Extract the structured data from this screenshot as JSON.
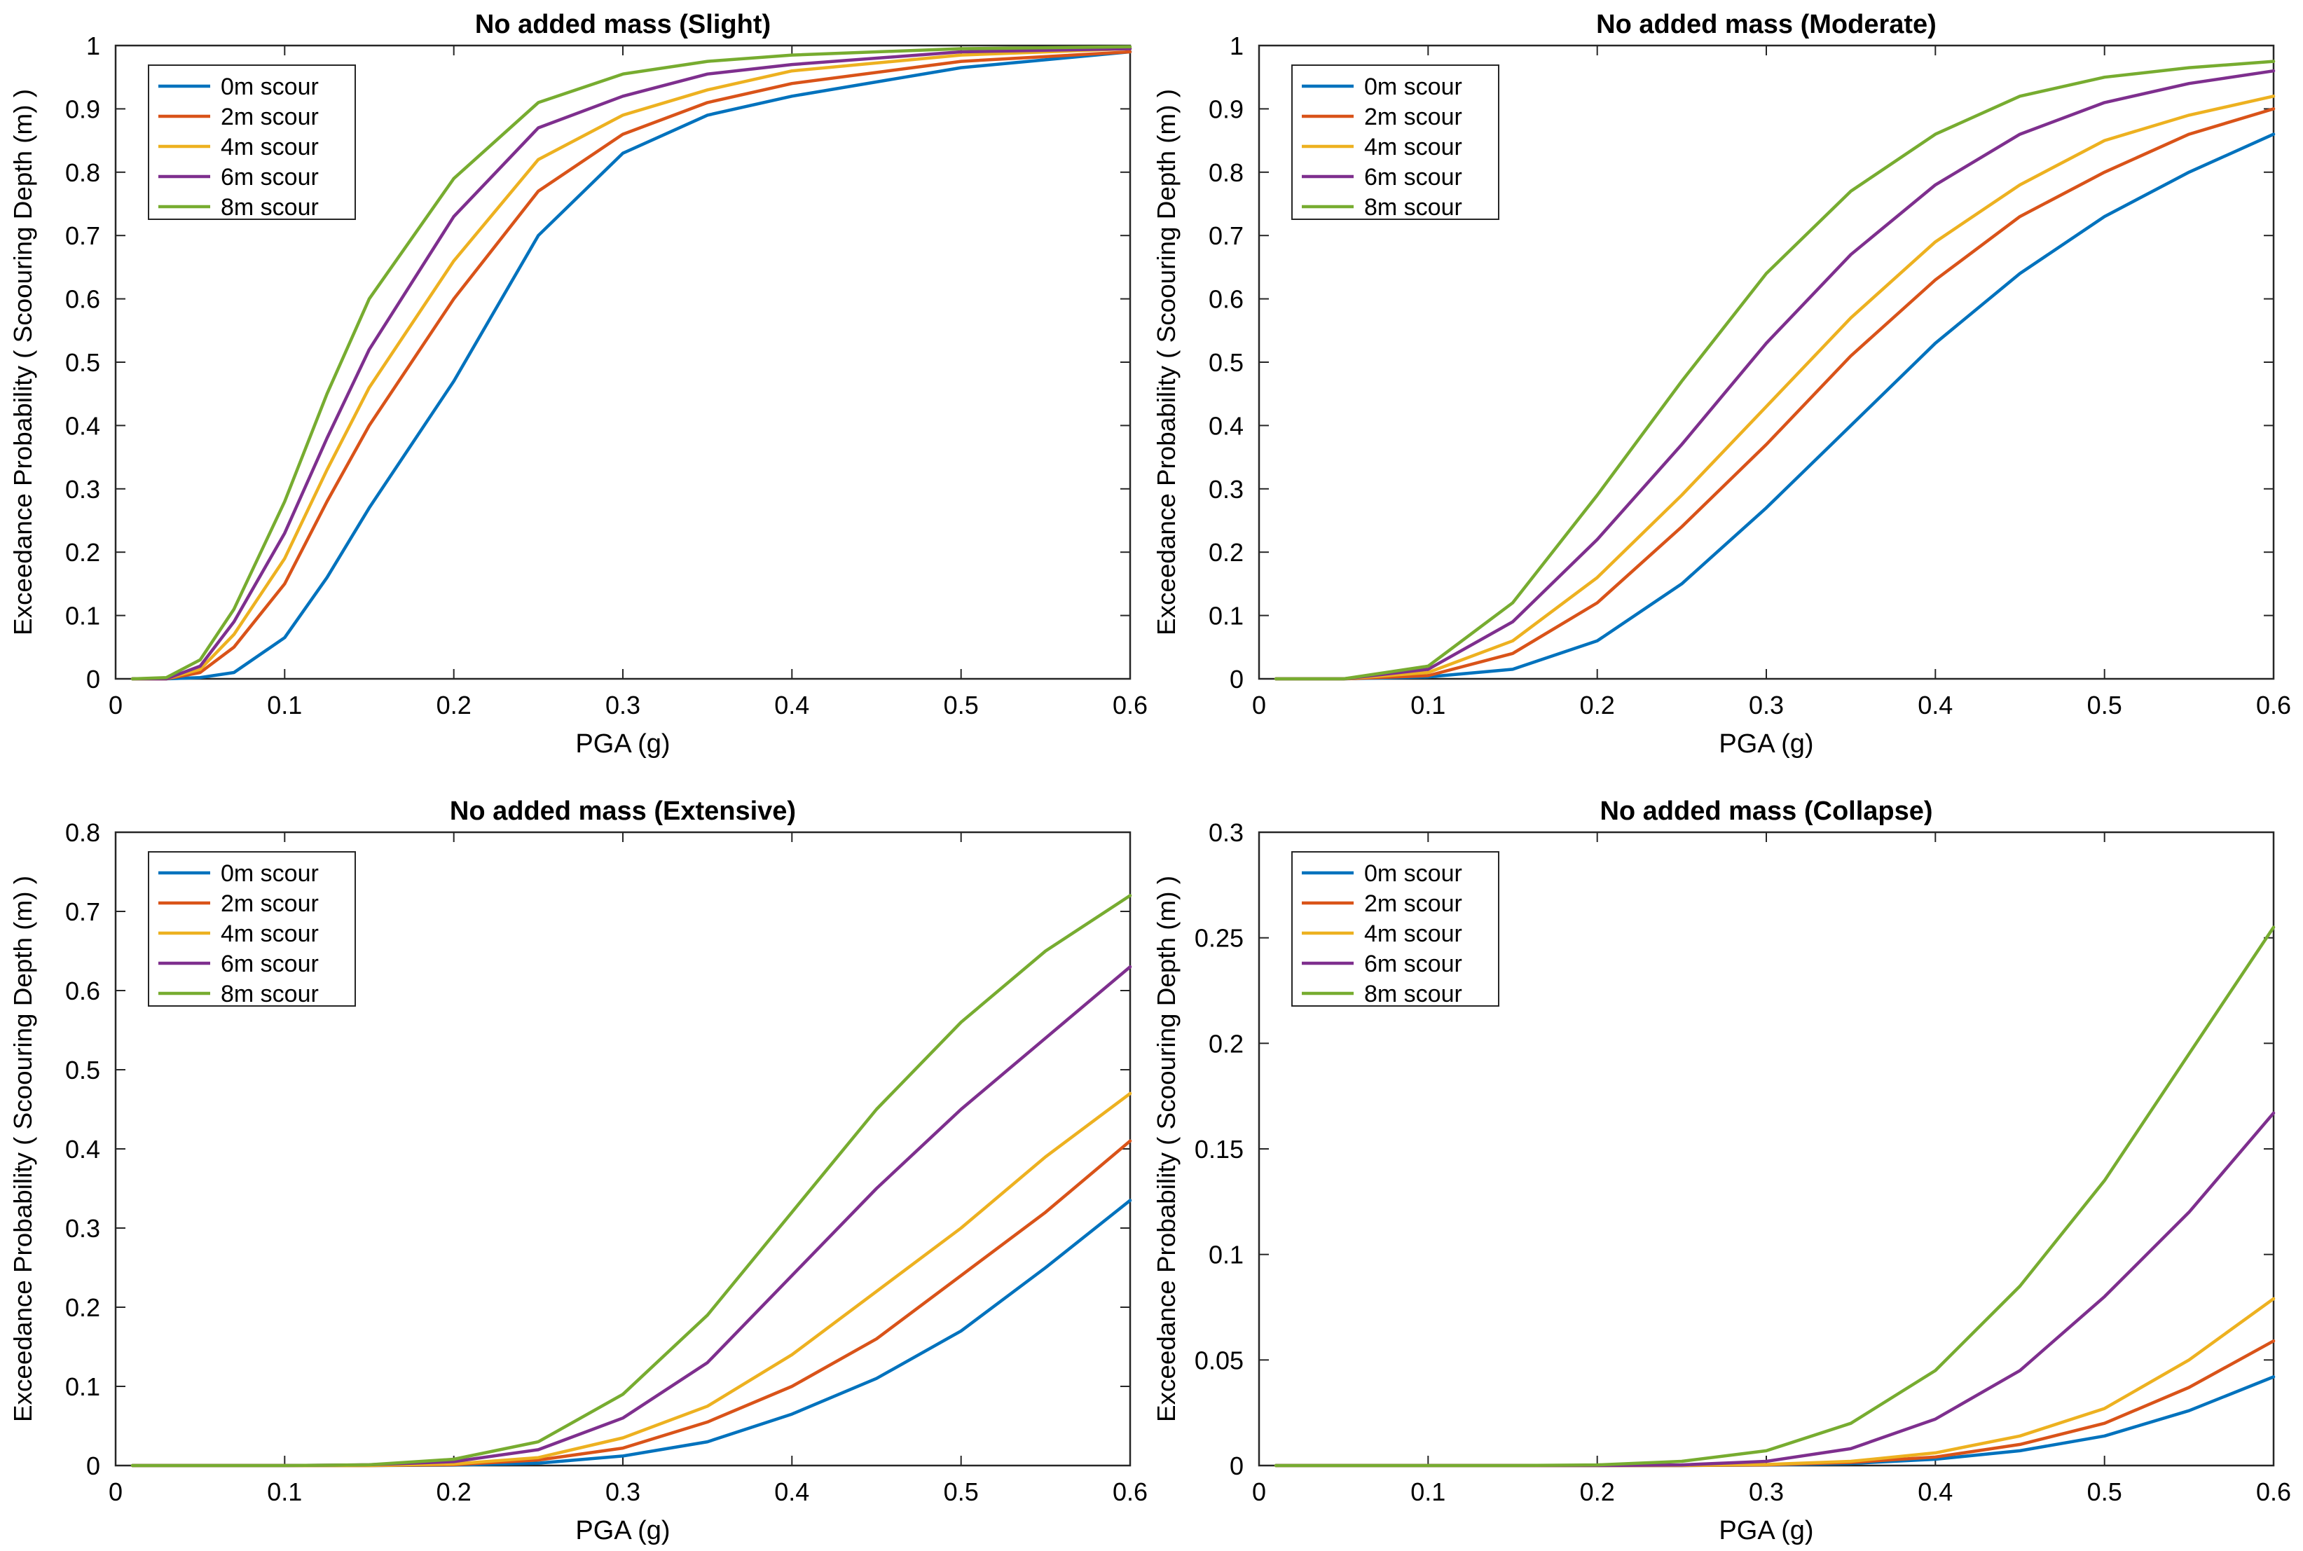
{
  "figure": {
    "xlabel": "PGA (g)",
    "ylabel": "Exceedance Probability ( Scoouring Depth (m) )",
    "legend_labels": [
      "0m scour",
      "2m scour",
      "4m scour",
      "6m scour",
      "8m scour"
    ],
    "series_colors": [
      "#0072BD",
      "#D95319",
      "#EDB120",
      "#7E2F8E",
      "#77AC30"
    ]
  },
  "chart_data": [
    {
      "type": "line",
      "title": "No added mass (Slight)",
      "xlabel": "PGA (g)",
      "ylabel": "Exceedance Probability ( Scoouring Depth (m) )",
      "xlim": [
        0,
        0.6
      ],
      "ylim": [
        0,
        1
      ],
      "xticks": [
        0,
        0.1,
        0.2,
        0.3,
        0.4,
        0.5,
        0.6
      ],
      "xtick_labels": [
        "0",
        "0.1",
        "0.2",
        "0.3",
        "0.4",
        "0.5",
        "0.6"
      ],
      "yticks": [
        0,
        0.1,
        0.2,
        0.3,
        0.4,
        0.5,
        0.6,
        0.7,
        0.8,
        0.9,
        1
      ],
      "ytick_labels": [
        "0",
        "0.1",
        "0.2",
        "0.3",
        "0.4",
        "0.5",
        "0.6",
        "0.7",
        "0.8",
        "0.9",
        "1"
      ],
      "legend": "top-left",
      "grid": false,
      "x": [
        0.01,
        0.03,
        0.05,
        0.07,
        0.1,
        0.125,
        0.15,
        0.2,
        0.25,
        0.3,
        0.35,
        0.4,
        0.5,
        0.6
      ],
      "series": [
        {
          "name": "0m scour",
          "values": [
            0,
            0.0,
            0.002,
            0.01,
            0.065,
            0.16,
            0.27,
            0.47,
            0.7,
            0.83,
            0.89,
            0.92,
            0.965,
            0.99
          ]
        },
        {
          "name": "2m scour",
          "values": [
            0,
            0.0,
            0.01,
            0.05,
            0.15,
            0.28,
            0.4,
            0.6,
            0.77,
            0.86,
            0.91,
            0.94,
            0.975,
            0.99
          ]
        },
        {
          "name": "4m scour",
          "values": [
            0,
            0.0,
            0.015,
            0.07,
            0.19,
            0.33,
            0.46,
            0.66,
            0.82,
            0.89,
            0.93,
            0.96,
            0.985,
            0.995
          ]
        },
        {
          "name": "6m scour",
          "values": [
            0,
            0.0,
            0.02,
            0.09,
            0.23,
            0.38,
            0.52,
            0.73,
            0.87,
            0.92,
            0.955,
            0.97,
            0.99,
            0.995
          ]
        },
        {
          "name": "8m scour",
          "values": [
            0,
            0.002,
            0.03,
            0.11,
            0.28,
            0.45,
            0.6,
            0.79,
            0.91,
            0.955,
            0.975,
            0.985,
            0.995,
            0.998
          ]
        }
      ]
    },
    {
      "type": "line",
      "title": "No added mass (Moderate)",
      "xlabel": "PGA (g)",
      "ylabel": "Exceedance Probability ( Scoouring Depth (m) )",
      "xlim": [
        0,
        0.6
      ],
      "ylim": [
        0,
        1
      ],
      "xticks": [
        0,
        0.1,
        0.2,
        0.3,
        0.4,
        0.5,
        0.6
      ],
      "xtick_labels": [
        "0",
        "0.1",
        "0.2",
        "0.3",
        "0.4",
        "0.5",
        "0.6"
      ],
      "yticks": [
        0,
        0.1,
        0.2,
        0.3,
        0.4,
        0.5,
        0.6,
        0.7,
        0.8,
        0.9,
        1
      ],
      "ytick_labels": [
        "0",
        "0.1",
        "0.2",
        "0.3",
        "0.4",
        "0.5",
        "0.6",
        "0.7",
        "0.8",
        "0.9",
        "1"
      ],
      "legend": "top-left",
      "grid": false,
      "x": [
        0.01,
        0.05,
        0.1,
        0.15,
        0.2,
        0.25,
        0.3,
        0.35,
        0.4,
        0.45,
        0.5,
        0.55,
        0.6
      ],
      "series": [
        {
          "name": "0m scour",
          "values": [
            0,
            0,
            0.003,
            0.015,
            0.06,
            0.15,
            0.27,
            0.4,
            0.53,
            0.64,
            0.73,
            0.8,
            0.86
          ]
        },
        {
          "name": "2m scour",
          "values": [
            0,
            0,
            0.005,
            0.04,
            0.12,
            0.24,
            0.37,
            0.51,
            0.63,
            0.73,
            0.8,
            0.86,
            0.9
          ]
        },
        {
          "name": "4m scour",
          "values": [
            0,
            0,
            0.01,
            0.06,
            0.16,
            0.29,
            0.43,
            0.57,
            0.69,
            0.78,
            0.85,
            0.89,
            0.92
          ]
        },
        {
          "name": "6m scour",
          "values": [
            0,
            0,
            0.015,
            0.09,
            0.22,
            0.37,
            0.53,
            0.67,
            0.78,
            0.86,
            0.91,
            0.94,
            0.96
          ]
        },
        {
          "name": "8m scour",
          "values": [
            0,
            0,
            0.02,
            0.12,
            0.29,
            0.47,
            0.64,
            0.77,
            0.86,
            0.92,
            0.95,
            0.965,
            0.975
          ]
        }
      ]
    },
    {
      "type": "line",
      "title": "No added mass (Extensive)",
      "xlabel": "PGA (g)",
      "ylabel": "Exceedance Probability ( Scoouring Depth (m) )",
      "xlim": [
        0,
        0.6
      ],
      "ylim": [
        0,
        0.8
      ],
      "xticks": [
        0,
        0.1,
        0.2,
        0.3,
        0.4,
        0.5,
        0.6
      ],
      "xtick_labels": [
        "0",
        "0.1",
        "0.2",
        "0.3",
        "0.4",
        "0.5",
        "0.6"
      ],
      "yticks": [
        0,
        0.1,
        0.2,
        0.3,
        0.4,
        0.5,
        0.6,
        0.7,
        0.8
      ],
      "ytick_labels": [
        "0",
        "0.1",
        "0.2",
        "0.3",
        "0.4",
        "0.5",
        "0.6",
        "0.7",
        "0.8"
      ],
      "legend": "top-left",
      "grid": false,
      "x": [
        0.01,
        0.1,
        0.15,
        0.2,
        0.25,
        0.3,
        0.35,
        0.4,
        0.45,
        0.5,
        0.55,
        0.6
      ],
      "series": [
        {
          "name": "0m scour",
          "values": [
            0,
            0,
            0,
            0.0005,
            0.003,
            0.012,
            0.03,
            0.065,
            0.11,
            0.17,
            0.25,
            0.335
          ]
        },
        {
          "name": "2m scour",
          "values": [
            0,
            0,
            0,
            0.001,
            0.007,
            0.022,
            0.055,
            0.1,
            0.16,
            0.24,
            0.32,
            0.41
          ]
        },
        {
          "name": "4m scour",
          "values": [
            0,
            0,
            0,
            0.002,
            0.01,
            0.035,
            0.075,
            0.14,
            0.22,
            0.3,
            0.39,
            0.47
          ]
        },
        {
          "name": "6m scour",
          "values": [
            0,
            0,
            0.001,
            0.005,
            0.02,
            0.06,
            0.13,
            0.24,
            0.35,
            0.45,
            0.54,
            0.63
          ]
        },
        {
          "name": "8m scour",
          "values": [
            0,
            0,
            0.001,
            0.008,
            0.03,
            0.09,
            0.19,
            0.32,
            0.45,
            0.56,
            0.65,
            0.72
          ]
        }
      ]
    },
    {
      "type": "line",
      "title": "No added mass (Collapse)",
      "xlabel": "PGA (g)",
      "ylabel": "Exceedance Probability ( Scoouring Depth (m) )",
      "xlim": [
        0,
        0.6
      ],
      "ylim": [
        0,
        0.3
      ],
      "xticks": [
        0,
        0.1,
        0.2,
        0.3,
        0.4,
        0.5,
        0.6
      ],
      "xtick_labels": [
        "0",
        "0.1",
        "0.2",
        "0.3",
        "0.4",
        "0.5",
        "0.6"
      ],
      "yticks": [
        0,
        0.05,
        0.1,
        0.15,
        0.2,
        0.25,
        0.3
      ],
      "ytick_labels": [
        "0",
        "0.05",
        "0.1",
        "0.15",
        "0.2",
        "0.25",
        "0.3"
      ],
      "legend": "top-left",
      "grid": false,
      "x": [
        0.01,
        0.15,
        0.2,
        0.25,
        0.3,
        0.35,
        0.4,
        0.45,
        0.5,
        0.55,
        0.6
      ],
      "series": [
        {
          "name": "0m scour",
          "values": [
            0,
            0,
            0,
            0,
            0.0002,
            0.001,
            0.003,
            0.007,
            0.014,
            0.026,
            0.042
          ]
        },
        {
          "name": "2m scour",
          "values": [
            0,
            0,
            0,
            0,
            0.0003,
            0.0015,
            0.004,
            0.01,
            0.02,
            0.037,
            0.059
          ]
        },
        {
          "name": "4m scour",
          "values": [
            0,
            0,
            0,
            0.0001,
            0.0005,
            0.002,
            0.006,
            0.014,
            0.027,
            0.05,
            0.079
          ]
        },
        {
          "name": "6m scour",
          "values": [
            0,
            0,
            0,
            0.0003,
            0.002,
            0.008,
            0.022,
            0.045,
            0.08,
            0.12,
            0.167
          ]
        },
        {
          "name": "8m scour",
          "values": [
            0,
            0,
            0.0003,
            0.002,
            0.007,
            0.02,
            0.045,
            0.085,
            0.135,
            0.195,
            0.255
          ]
        }
      ]
    }
  ]
}
